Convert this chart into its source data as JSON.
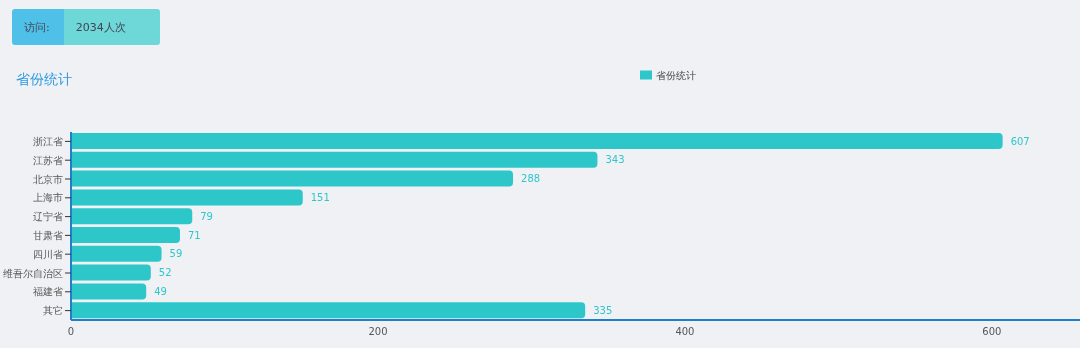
{
  "chart_data": {
    "type": "bar",
    "orientation": "horizontal",
    "title": "省份统计",
    "annotations": [
      "访问:",
      "2034人次"
    ],
    "categories": [
      "浙江省",
      "江苏省",
      "北京市",
      "上海市",
      "辽宁省",
      "甘肃省",
      "四川省",
      "维吾尔自治区",
      "福建省",
      "其它"
    ],
    "series": [
      {
        "name": "省份统计",
        "color": "#2ec7c9",
        "values": [
          607,
          343,
          288,
          151,
          79,
          71,
          59,
          52,
          49,
          335
        ]
      }
    ],
    "xlim": [
      0,
      660
    ],
    "xticks": [
      0,
      200,
      400,
      600
    ],
    "data_labels": true,
    "legend": "top"
  }
}
